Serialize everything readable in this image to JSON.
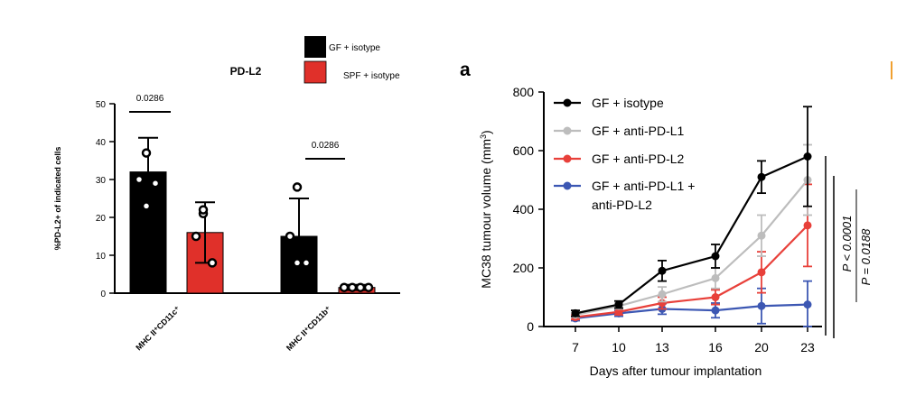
{
  "chart_data": [
    {
      "type": "bar",
      "title": "PD-L2",
      "ylabel": "%PD-L2+ of indicated cells",
      "ylim": [
        0,
        50
      ],
      "yticks": [
        0,
        10,
        20,
        30,
        40,
        50
      ],
      "legend": {
        "placement": "top",
        "items": [
          "GF + isotype",
          "SPF + isotype"
        ]
      },
      "colors": {
        "GF + isotype": "#000000",
        "SPF + isotype": "#e0302a"
      },
      "groups": [
        {
          "label": "MHC II⁺CD11c⁺",
          "bars": [
            {
              "series": "GF + isotype",
              "value": 32,
              "err_low": 23,
              "err_high": 41,
              "points": [
                37,
                30,
                29,
                23
              ]
            },
            {
              "series": "SPF + isotype",
              "value": 16,
              "err_low": 8,
              "err_high": 24,
              "points": [
                21,
                15,
                8,
                22
              ]
            }
          ],
          "pvalue": "0.0286"
        },
        {
          "label": "MHC II⁺CD11b⁺",
          "bars": [
            {
              "series": "GF + isotype",
              "value": 15,
              "err_low": 6,
              "err_high": 25,
              "points": [
                28,
                15,
                8,
                8
              ]
            },
            {
              "series": "SPF + isotype",
              "value": 1.5,
              "err_low": 0.8,
              "err_high": 2.2,
              "points": [
                1.5,
                1.5,
                1.5,
                1.5
              ]
            }
          ],
          "pvalue": "0.0286"
        }
      ]
    },
    {
      "type": "line",
      "panel_label": "a",
      "xlabel": "Days after tumour implantation",
      "ylabel_main": "MC38 tumour volume (mm",
      "ylabel_sup": "3",
      "ylabel_tail": ")",
      "x": [
        7,
        10,
        13,
        16,
        20,
        23
      ],
      "ylim": [
        0,
        800
      ],
      "yticks": [
        0,
        200,
        400,
        600,
        800
      ],
      "series": [
        {
          "name": "GF + isotype",
          "color": "#000000",
          "values": [
            45,
            75,
            190,
            240,
            510,
            580
          ],
          "err": [
            10,
            12,
            35,
            40,
            55,
            170
          ]
        },
        {
          "name": "GF + anti-PD-L1",
          "color": "#bdbdbd",
          "values": [
            40,
            70,
            110,
            165,
            310,
            500
          ],
          "err": [
            8,
            10,
            25,
            35,
            70,
            120
          ]
        },
        {
          "name": "GF + anti-PD-L2",
          "color": "#e8403a",
          "values": [
            32,
            50,
            80,
            100,
            185,
            345
          ],
          "err": [
            8,
            10,
            20,
            25,
            70,
            140
          ]
        },
        {
          "name": "GF + anti-PD-L1 + anti-PD-L2",
          "color": "#3c57b3",
          "values": [
            28,
            45,
            60,
            55,
            70,
            75
          ],
          "err": [
            8,
            10,
            18,
            25,
            60,
            80
          ]
        }
      ],
      "legend_lines": [
        [
          "GF + isotype"
        ],
        [
          "GF + anti-PD-L1"
        ],
        [
          "GF + anti-PD-L2"
        ],
        [
          "GF + anti-PD-L1 +",
          "anti-PD-L2"
        ]
      ],
      "pvalues": [
        "P < 0.0001",
        "P = 0.0188"
      ]
    }
  ]
}
